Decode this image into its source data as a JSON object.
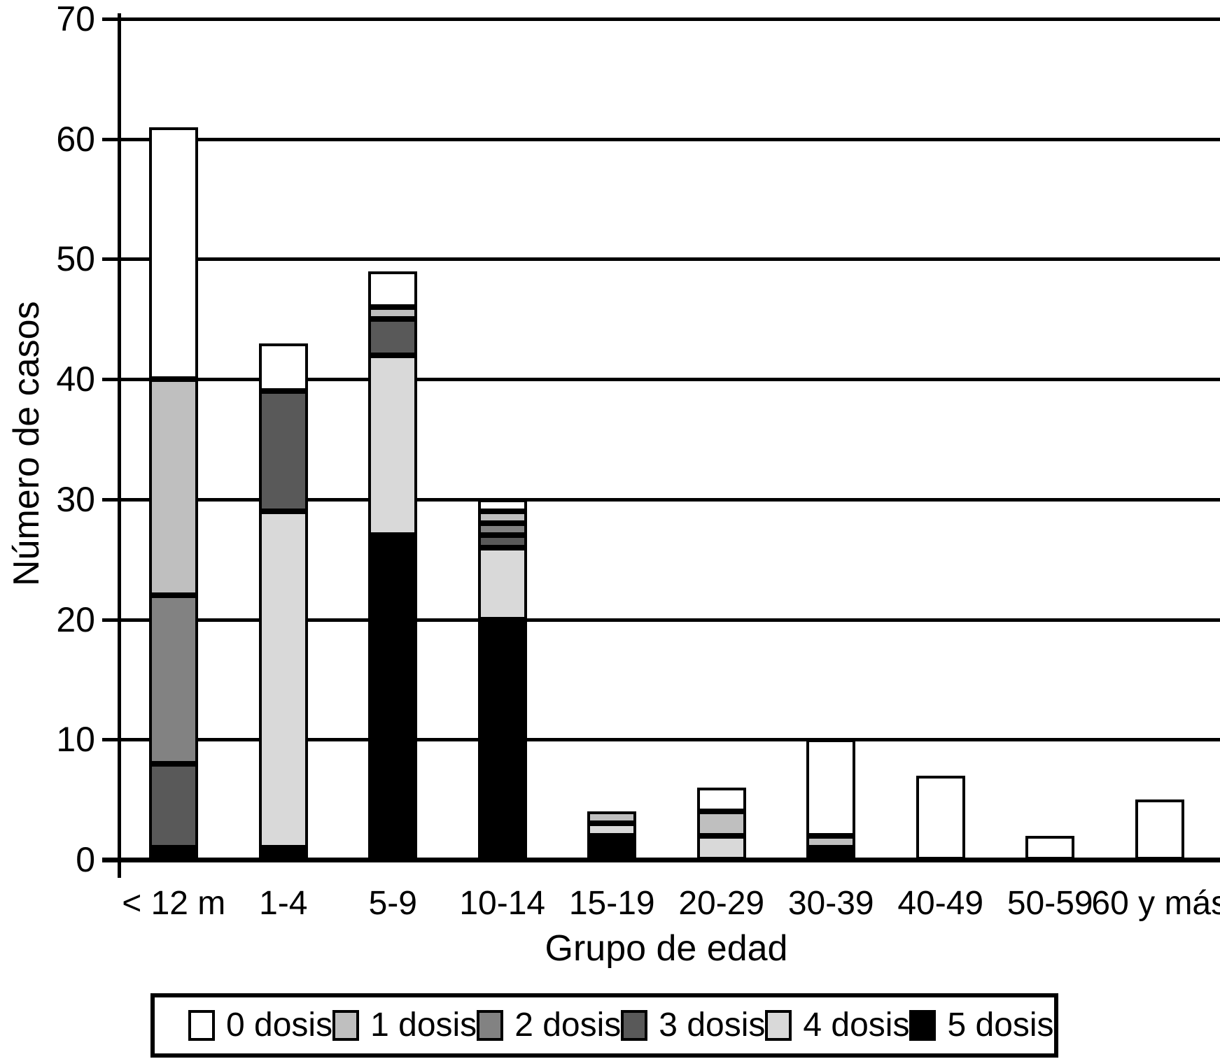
{
  "chart_data": {
    "type": "bar",
    "subtype": "stacked-vertical",
    "title": "",
    "xlabel": "Grupo de edad",
    "ylabel": "Número de casos",
    "ylim": [
      0,
      70
    ],
    "ytick_step": 10,
    "yticks": [
      0,
      10,
      20,
      30,
      40,
      50,
      60,
      70
    ],
    "grid": "horizontal",
    "categories": [
      "< 12 m",
      "1-4",
      "5-9",
      "10-14",
      "15-19",
      "20-29",
      "30-39",
      "40-49",
      "50-59",
      "60 y más"
    ],
    "series": [
      {
        "name": "5 dosis",
        "color": "#000000",
        "values": [
          1,
          1,
          27,
          20,
          2,
          0,
          1,
          0,
          0,
          0
        ]
      },
      {
        "name": "4 dosis",
        "color": "#d9d9d9",
        "values": [
          0,
          28,
          15,
          6,
          1,
          2,
          0,
          0,
          0,
          0
        ]
      },
      {
        "name": "3 dosis",
        "color": "#595959",
        "values": [
          7,
          10,
          3,
          1,
          0,
          0,
          0,
          0,
          0,
          0
        ]
      },
      {
        "name": "2 dosis",
        "color": "#828282",
        "values": [
          14,
          0,
          0,
          1,
          0,
          0,
          0,
          0,
          0,
          0
        ]
      },
      {
        "name": "1 dosis",
        "color": "#bfbfbf",
        "values": [
          18,
          0,
          1,
          1,
          1,
          2,
          1,
          0,
          0,
          0
        ]
      },
      {
        "name": "0 dosis",
        "color": "#ffffff",
        "values": [
          21,
          4,
          3,
          1,
          0,
          2,
          8,
          7,
          2,
          5
        ]
      }
    ],
    "totals": [
      61,
      43,
      49,
      30,
      4,
      6,
      10,
      7,
      2,
      5
    ],
    "legend": {
      "position": "bottom",
      "order": [
        "0 dosis",
        "1 dosis",
        "2 dosis",
        "3 dosis",
        "4 dosis",
        "5 dosis"
      ]
    },
    "bar_outline_color": "#000000"
  }
}
